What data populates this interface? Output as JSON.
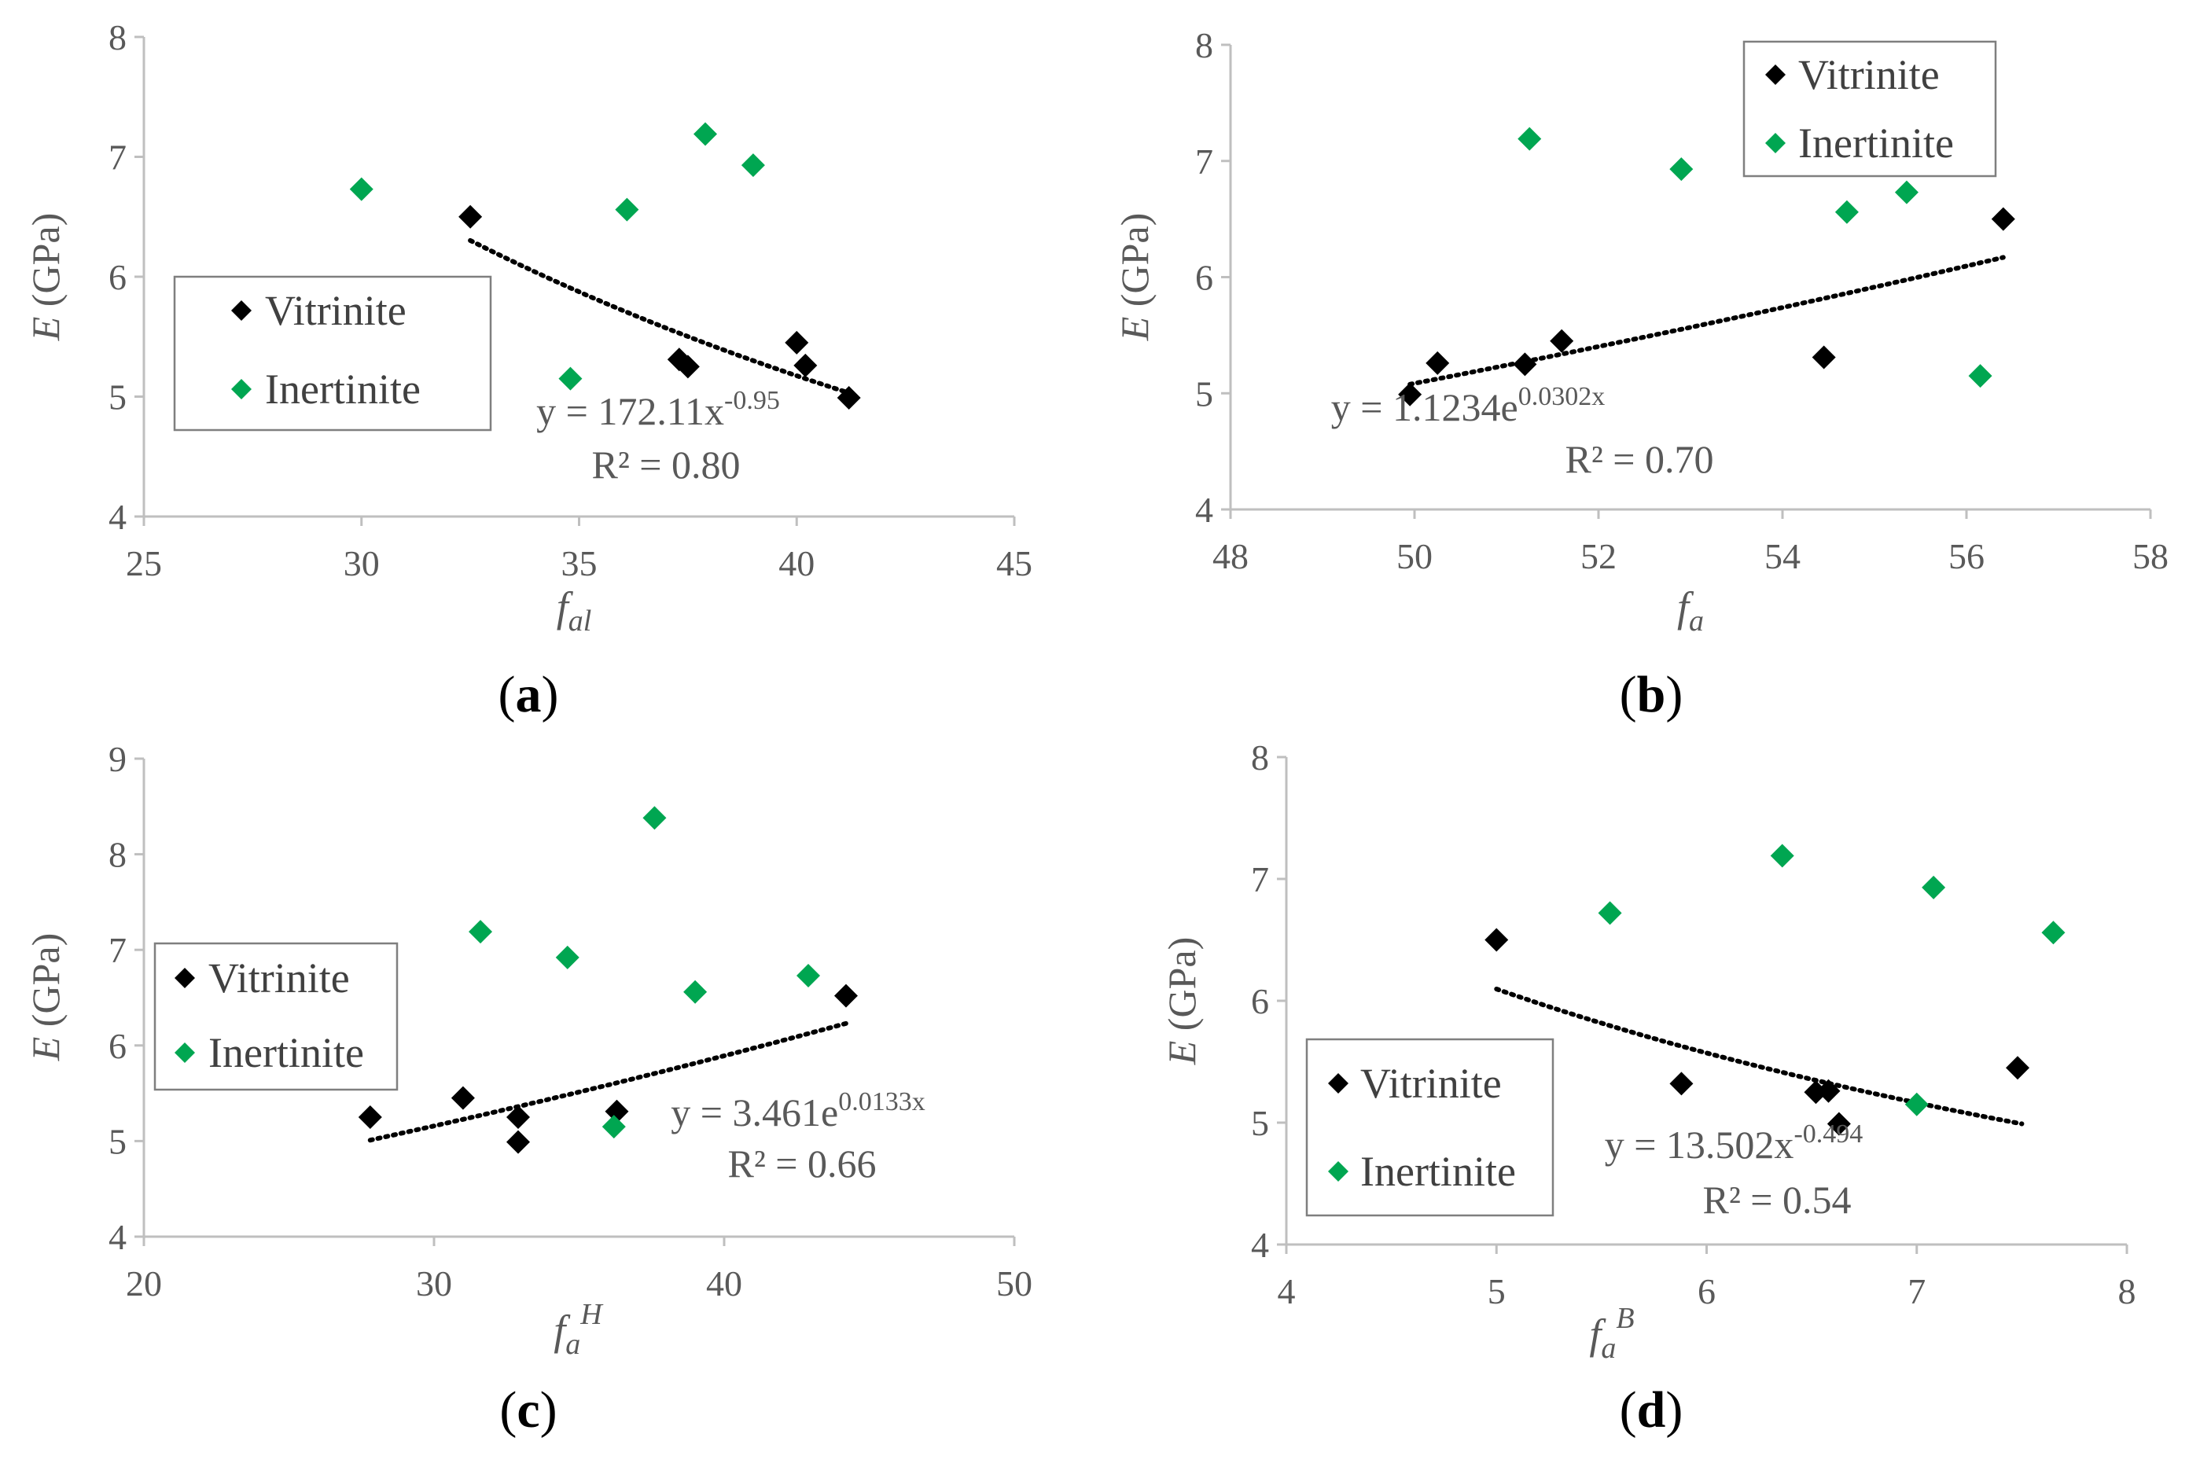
{
  "colors": {
    "vitrinite": "#000000",
    "inertinite": "#00A651"
  },
  "chart_data": [
    {
      "type": "scatter",
      "panel_label": "a",
      "xlabel": {
        "main": "f",
        "sub": "al",
        "sup": ""
      },
      "ylabel": "E (GPa)",
      "ylabel_symbol": "E",
      "ylabel_unit": "(GPa)",
      "xlim": [
        25,
        45
      ],
      "ylim": [
        4,
        8
      ],
      "xticks": [
        25,
        30,
        35,
        40,
        45
      ],
      "yticks": [
        4,
        5,
        6,
        7,
        8
      ],
      "legend_position": "middle-left",
      "series": [
        {
          "name": "Vitrinite",
          "color": "#000000",
          "x": [
            32.5,
            37.3,
            37.5,
            40.0,
            40.2,
            41.2
          ],
          "y": [
            6.5,
            5.31,
            5.25,
            5.45,
            5.26,
            4.99
          ]
        },
        {
          "name": "Inertinite",
          "color": "#00A651",
          "x": [
            30.0,
            34.8,
            36.1,
            37.9,
            39.0
          ],
          "y": [
            6.73,
            5.15,
            6.56,
            7.19,
            6.93
          ]
        }
      ],
      "trendline": {
        "type": "power",
        "a": 172.11,
        "b": -0.95,
        "x_range": [
          32.5,
          41.2
        ],
        "eq_base": "y = 172.11x",
        "eq_exp": "-0.95",
        "r2": "R² = 0.80"
      }
    },
    {
      "type": "scatter",
      "panel_label": "b",
      "xlabel": {
        "main": "f",
        "sub": "a",
        "sup": ""
      },
      "ylabel": "E (GPa)",
      "ylabel_symbol": "E",
      "ylabel_unit": "(GPa)",
      "xlim": [
        48,
        58
      ],
      "ylim": [
        4,
        8
      ],
      "xticks": [
        48,
        50,
        52,
        54,
        56,
        58
      ],
      "yticks": [
        4,
        5,
        6,
        7,
        8
      ],
      "legend_position": "top-right",
      "series": [
        {
          "name": "Vitrinite",
          "color": "#000000",
          "x": [
            49.95,
            50.25,
            51.2,
            51.6,
            54.45,
            56.4
          ],
          "y": [
            4.99,
            5.26,
            5.25,
            5.45,
            5.31,
            6.5
          ]
        },
        {
          "name": "Inertinite",
          "color": "#00A651",
          "x": [
            51.25,
            52.9,
            54.7,
            55.35,
            56.15
          ],
          "y": [
            7.19,
            6.93,
            6.56,
            6.73,
            5.15
          ]
        }
      ],
      "trendline": {
        "type": "exponential",
        "a": 1.1234,
        "b": 0.0302,
        "x_range": [
          49.95,
          56.4
        ],
        "eq_base": "y = 1.1234e",
        "eq_exp": "0.0302x",
        "r2": "R² = 0.70"
      }
    },
    {
      "type": "scatter",
      "panel_label": "c",
      "xlabel": {
        "main": "f",
        "sub": "a",
        "sup": "H"
      },
      "ylabel": "E (GPa)",
      "ylabel_symbol": "E",
      "ylabel_unit": "(GPa)",
      "xlim": [
        20,
        50
      ],
      "ylim": [
        4,
        9
      ],
      "xticks": [
        20,
        30,
        40,
        50
      ],
      "yticks": [
        4,
        5,
        6,
        7,
        8,
        9
      ],
      "legend_position": "middle-left",
      "series": [
        {
          "name": "Vitrinite",
          "color": "#000000",
          "x": [
            27.8,
            31.0,
            32.9,
            32.9,
            36.3,
            44.2
          ],
          "y": [
            5.25,
            5.45,
            5.25,
            4.99,
            5.31,
            6.52
          ]
        },
        {
          "name": "Inertinite",
          "color": "#00A651",
          "x": [
            31.6,
            34.6,
            36.2,
            37.6,
            39.0,
            42.9
          ],
          "y": [
            7.19,
            6.92,
            5.15,
            8.38,
            6.56,
            6.73
          ]
        }
      ],
      "trendline": {
        "type": "exponential",
        "a": 3.461,
        "b": 0.0133,
        "x_range": [
          27.8,
          44.2
        ],
        "eq_base": "y = 3.461e",
        "eq_exp": "0.0133x",
        "r2": "R² = 0.66"
      }
    },
    {
      "type": "scatter",
      "panel_label": "d",
      "xlabel": {
        "main": "f",
        "sub": "a",
        "sup": "B"
      },
      "ylabel": "E (GPa)",
      "ylabel_symbol": "E",
      "ylabel_unit": "(GPa)",
      "xlim": [
        4,
        8
      ],
      "ylim": [
        4,
        8
      ],
      "xticks": [
        4,
        5,
        6,
        7,
        8
      ],
      "yticks": [
        4,
        5,
        6,
        7,
        8
      ],
      "legend_position": "bottom-left",
      "series": [
        {
          "name": "Vitrinite",
          "color": "#000000",
          "x": [
            5.0,
            5.88,
            6.52,
            6.58,
            6.63,
            7.48
          ],
          "y": [
            6.5,
            5.32,
            5.25,
            5.26,
            4.99,
            5.45
          ]
        },
        {
          "name": "Inertinite",
          "color": "#00A651",
          "x": [
            5.54,
            6.36,
            7.0,
            7.08,
            7.65
          ],
          "y": [
            6.72,
            7.19,
            5.15,
            6.93,
            6.56
          ]
        }
      ],
      "trendline": {
        "type": "power",
        "a": 13.502,
        "b": -0.494,
        "x_range": [
          5.0,
          7.5
        ],
        "eq_base": "y = 13.502x",
        "eq_exp": "-0.494",
        "r2": "R² = 0.54"
      }
    }
  ]
}
